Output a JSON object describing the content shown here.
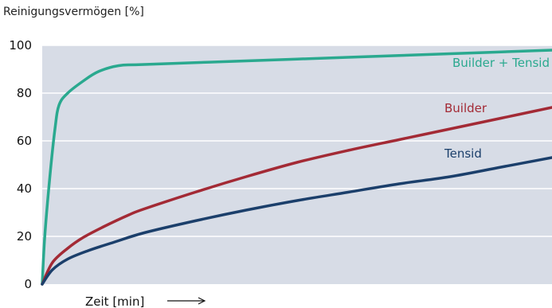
{
  "chart_data": {
    "type": "line",
    "title": "",
    "ylabel": "Reinigungsvermögen [%]",
    "xlabel": "Zeit [min]",
    "ylim": [
      0,
      100
    ],
    "yticks": [
      "0",
      "20",
      "40",
      "60",
      "80",
      "100"
    ],
    "grid": true,
    "background": "#d7dce6",
    "gridline_color": "#ffffff",
    "series": [
      {
        "name": "Builder + Tensid",
        "color": "#2aa98f",
        "points": [
          [
            0,
            0
          ],
          [
            0.5,
            20
          ],
          [
            1.5,
            45
          ],
          [
            2.5,
            65
          ],
          [
            3.3,
            75
          ],
          [
            5,
            80
          ],
          [
            8,
            85
          ],
          [
            11,
            89
          ],
          [
            15,
            91.5
          ],
          [
            20,
            92
          ],
          [
            40,
            93.5
          ],
          [
            60,
            95
          ],
          [
            80,
            96.5
          ],
          [
            100,
            98
          ]
        ]
      },
      {
        "name": "Builder",
        "color": "#a32a35",
        "points": [
          [
            0,
            0
          ],
          [
            2,
            9
          ],
          [
            5,
            15
          ],
          [
            8,
            19.5
          ],
          [
            12,
            24
          ],
          [
            17,
            29
          ],
          [
            20,
            31.5
          ],
          [
            30,
            38.5
          ],
          [
            40,
            45
          ],
          [
            50,
            51
          ],
          [
            60,
            56
          ],
          [
            70,
            60.5
          ],
          [
            80,
            65
          ],
          [
            90,
            69.5
          ],
          [
            100,
            74
          ]
        ]
      },
      {
        "name": "Tensid",
        "color": "#1b3f6b",
        "points": [
          [
            0,
            0
          ],
          [
            2,
            6
          ],
          [
            5,
            10.5
          ],
          [
            9,
            14
          ],
          [
            14,
            17.5
          ],
          [
            20,
            21.5
          ],
          [
            30,
            26.5
          ],
          [
            40,
            31
          ],
          [
            50,
            35
          ],
          [
            60,
            38.5
          ],
          [
            70,
            42
          ],
          [
            80,
            45
          ],
          [
            90,
            49
          ],
          [
            100,
            53
          ]
        ]
      }
    ]
  }
}
